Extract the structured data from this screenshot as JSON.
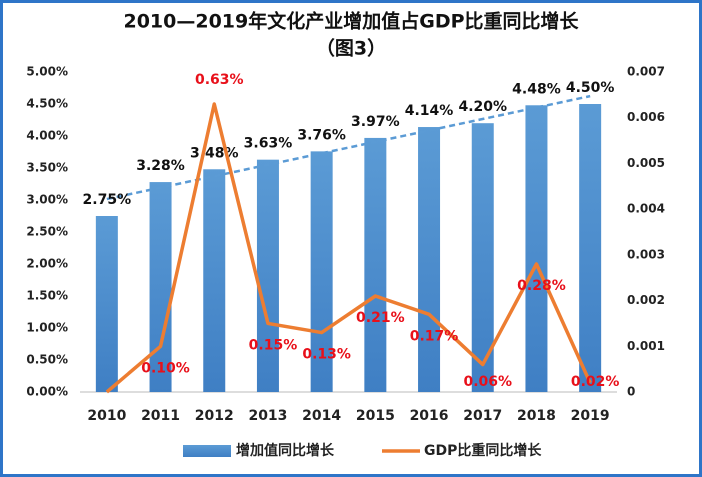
{
  "chart_data": {
    "type": "bar-line",
    "title": "2010—2019年文化产业增加值占GDP比重同比增长",
    "subtitle": "（图3）",
    "categories": [
      "2010",
      "2011",
      "2012",
      "2013",
      "2014",
      "2015",
      "2016",
      "2017",
      "2018",
      "2019"
    ],
    "series": [
      {
        "name": "增加值同比增长",
        "type": "bar",
        "color": "#4f8fd0",
        "values": [
          2.75,
          3.28,
          3.48,
          3.63,
          3.76,
          3.97,
          4.14,
          4.2,
          4.48,
          4.5
        ],
        "value_labels": [
          "2.75%",
          "3.28%",
          "3.48%",
          "3.63%",
          "3.76%",
          "3.97%",
          "4.14%",
          "4.20%",
          "4.48%",
          "4.50%"
        ]
      },
      {
        "name": "GDP比重同比增长",
        "type": "line",
        "axis": "y2",
        "color": "#ed7d31",
        "values": [
          0,
          0.001,
          0.0063,
          0.0015,
          0.0013,
          0.0021,
          0.0017,
          0.0006,
          0.0028,
          0.0002
        ],
        "value_labels": [
          null,
          "0.10%",
          "0.63%",
          "0.15%",
          "0.13%",
          "0.21%",
          "0.17%",
          "0.06%",
          "0.28%",
          "0.02%"
        ]
      }
    ],
    "ylim": [
      0,
      5
    ],
    "yticks": [
      {
        "value": 0,
        "label": "0.00%"
      },
      {
        "value": 0.5,
        "label": "0.50%"
      },
      {
        "value": 1,
        "label": "1.00%"
      },
      {
        "value": 1.5,
        "label": "1.50%"
      },
      {
        "value": 2,
        "label": "2.00%"
      },
      {
        "value": 2.5,
        "label": "2.50%"
      },
      {
        "value": 3,
        "label": "3.00%"
      },
      {
        "value": 3.5,
        "label": "3.50%"
      },
      {
        "value": 4,
        "label": "4.00%"
      },
      {
        "value": 4.5,
        "label": "4.50%"
      },
      {
        "value": 5,
        "label": "5.00%"
      }
    ],
    "y2lim": [
      0,
      0.007
    ],
    "y2ticks": [
      0,
      0.001,
      0.002,
      0.003,
      0.004,
      0.005,
      0.006,
      0.007
    ],
    "trendline": true,
    "legend": "bottom"
  }
}
